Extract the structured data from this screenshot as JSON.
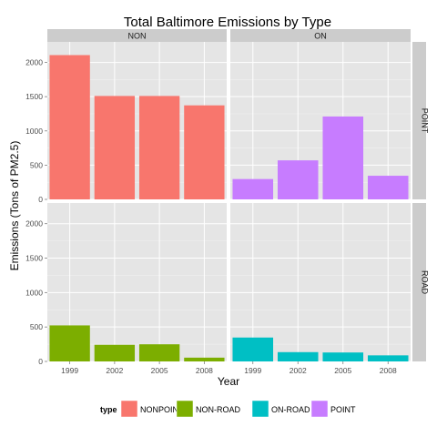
{
  "chart_data": {
    "type": "bar",
    "title": "Total Baltimore Emissions by Type",
    "xlabel": "Year",
    "ylabel": "Emissions (Tons of PM2.5)",
    "categories": [
      "1999",
      "2002",
      "2005",
      "2008"
    ],
    "ylim": [
      0,
      2300
    ],
    "yticks": [
      0,
      500,
      1000,
      1500,
      2000
    ],
    "grid": true,
    "legend_position": "bottom",
    "facet_columns": [
      "NON",
      "ON"
    ],
    "facet_rows": [
      "POINT",
      "ROAD"
    ],
    "legend": {
      "title": "type",
      "entries": [
        {
          "label": "NONPOINT",
          "color": "#f8766d"
        },
        {
          "label": "NON-ROAD",
          "color": "#7cae00"
        },
        {
          "label": "ON-ROAD",
          "color": "#00bfc4"
        },
        {
          "label": "POINT",
          "color": "#c77cff"
        }
      ]
    },
    "panels": [
      {
        "row": "POINT",
        "col": "NON",
        "series": "NONPOINT",
        "color": "#f8766d",
        "values": [
          2107,
          1510,
          1510,
          1373
        ]
      },
      {
        "row": "POINT",
        "col": "ON",
        "series": "POINT",
        "color": "#c77cff",
        "values": [
          297,
          570,
          1210,
          345
        ]
      },
      {
        "row": "ROAD",
        "col": "NON",
        "series": "NON-ROAD",
        "color": "#7cae00",
        "values": [
          523,
          241,
          249,
          55
        ]
      },
      {
        "row": "ROAD",
        "col": "ON",
        "series": "ON-ROAD",
        "color": "#00bfc4",
        "values": [
          347,
          135,
          130,
          88
        ]
      }
    ]
  }
}
